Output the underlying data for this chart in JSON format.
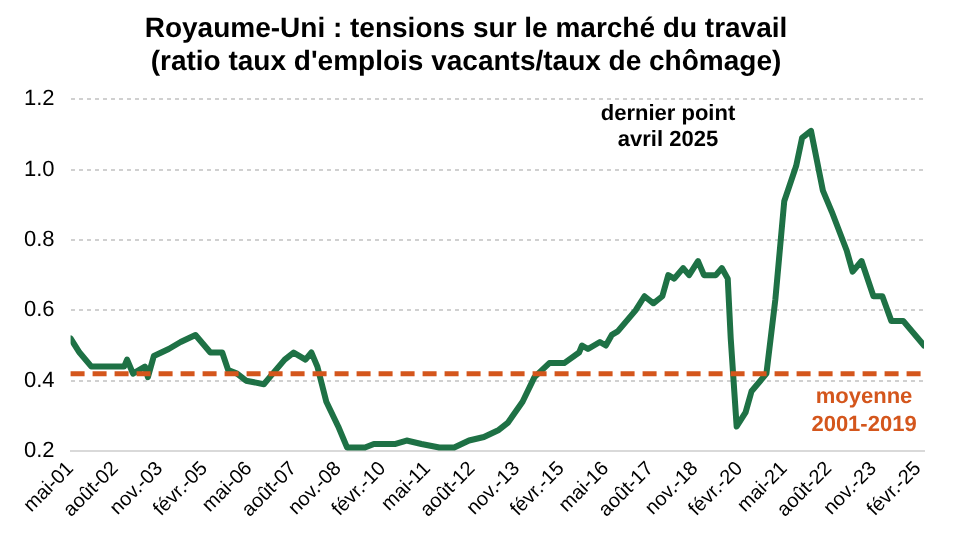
{
  "chart_data": {
    "type": "line",
    "title": "Royaume-Uni : tensions sur le marché du travail\n(ratio taux d'emplois vacants/taux de chômage)",
    "annotations": [
      "dernier point\navril 2025"
    ],
    "series": [
      {
        "color": "#1e7145",
        "x": [
          "2001-05",
          "2001-08",
          "2001-12",
          "2002-03",
          "2002-11",
          "2002-12",
          "2003-02",
          "2003-06",
          "2003-07",
          "2003-09",
          "2004-02",
          "2004-06",
          "2004-11",
          "2005-02",
          "2005-04",
          "2005-08",
          "2005-10",
          "2006-01",
          "2006-04",
          "2006-10",
          "2006-12",
          "2007-05",
          "2007-08",
          "2007-12",
          "2008-02",
          "2008-04",
          "2008-07",
          "2008-11",
          "2009-02",
          "2009-08",
          "2009-11",
          "2010-06",
          "2010-10",
          "2011-03",
          "2011-09",
          "2012-02",
          "2012-07",
          "2012-12",
          "2013-05",
          "2013-08",
          "2014-01",
          "2014-05",
          "2014-10",
          "2015-03",
          "2015-08",
          "2015-09",
          "2015-11",
          "2016-03",
          "2016-05",
          "2016-07",
          "2016-09",
          "2016-12",
          "2017-03",
          "2017-06",
          "2017-09",
          "2017-12",
          "2018-02",
          "2018-04",
          "2018-07",
          "2018-09",
          "2018-12",
          "2019-02",
          "2019-06",
          "2019-08",
          "2019-10",
          "2019-11",
          "2020-01",
          "2020-04",
          "2020-06",
          "2020-11",
          "2021-02",
          "2021-05",
          "2021-09",
          "2021-11",
          "2022-02",
          "2022-06",
          "2022-09",
          "2023-02",
          "2023-04",
          "2023-07",
          "2023-11",
          "2024-02",
          "2024-05",
          "2024-09",
          "2025-04"
        ],
        "values": [
          0.52,
          0.48,
          0.44,
          0.44,
          0.44,
          0.46,
          0.42,
          0.44,
          0.41,
          0.47,
          0.49,
          0.51,
          0.53,
          0.5,
          0.48,
          0.48,
          0.43,
          0.42,
          0.4,
          0.39,
          0.41,
          0.46,
          0.48,
          0.46,
          0.48,
          0.44,
          0.34,
          0.27,
          0.21,
          0.21,
          0.22,
          0.22,
          0.23,
          0.22,
          0.21,
          0.21,
          0.23,
          0.24,
          0.26,
          0.28,
          0.34,
          0.41,
          0.45,
          0.45,
          0.48,
          0.5,
          0.49,
          0.51,
          0.5,
          0.53,
          0.54,
          0.57,
          0.6,
          0.64,
          0.62,
          0.64,
          0.7,
          0.69,
          0.72,
          0.7,
          0.74,
          0.7,
          0.7,
          0.72,
          0.69,
          0.52,
          0.27,
          0.31,
          0.37,
          0.42,
          0.63,
          0.91,
          1.01,
          1.09,
          1.11,
          0.94,
          0.88,
          0.77,
          0.71,
          0.74,
          0.64,
          0.64,
          0.57,
          0.57,
          0.5
        ]
      }
    ],
    "xlim": [
      "2001-05",
      "2025-04"
    ],
    "xticks": [
      {
        "value": "2001-05",
        "label": "mai-01"
      },
      {
        "value": "2002-08",
        "label": "août-02"
      },
      {
        "value": "2003-11",
        "label": "nov.-03"
      },
      {
        "value": "2005-02",
        "label": "févr.-05"
      },
      {
        "value": "2006-05",
        "label": "mai-06"
      },
      {
        "value": "2007-08",
        "label": "août-07"
      },
      {
        "value": "2008-11",
        "label": "nov.-08"
      },
      {
        "value": "2010-02",
        "label": "févr.-10"
      },
      {
        "value": "2011-05",
        "label": "mai-11"
      },
      {
        "value": "2012-08",
        "label": "août-12"
      },
      {
        "value": "2013-11",
        "label": "nov.-13"
      },
      {
        "value": "2015-02",
        "label": "févr.-15"
      },
      {
        "value": "2016-05",
        "label": "mai-16"
      },
      {
        "value": "2017-08",
        "label": "août-17"
      },
      {
        "value": "2018-11",
        "label": "nov.-18"
      },
      {
        "value": "2020-02",
        "label": "févr.-20"
      },
      {
        "value": "2021-05",
        "label": "mai-21"
      },
      {
        "value": "2022-08",
        "label": "août-22"
      },
      {
        "value": "2023-11",
        "label": "nov.-23"
      },
      {
        "value": "2025-02",
        "label": "févr.-25"
      }
    ],
    "ylim": [
      0.2,
      1.2
    ],
    "yticks": [
      0.2,
      0.4,
      0.6,
      0.8,
      {
        "value": 1,
        "label": "1.0"
      },
      1.2
    ],
    "grid": "y",
    "legend": false,
    "marker": "none",
    "line_style": "solid",
    "ref_lines": [
      {
        "axis": "y",
        "value": 0.42,
        "label": "moyenne 2001-2019",
        "color": "#d4561c",
        "line_style": "dashed"
      }
    ]
  }
}
